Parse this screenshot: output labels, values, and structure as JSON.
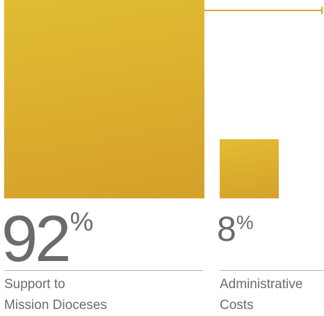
{
  "colors": {
    "accent": "#d9a92b",
    "bar_top": "#e0bd33",
    "bar_bottom": "#d6a02a",
    "text": "#6b6b6b",
    "rule": "#b3b3b3"
  },
  "chart_data": {
    "type": "bar",
    "title": "",
    "xlabel": "",
    "ylabel": "",
    "unit": "%",
    "categories": [
      "Support to Mission Dioceses",
      "Administrative Costs"
    ],
    "values": [
      92,
      8
    ],
    "ylim": [
      0,
      100
    ],
    "grid": false,
    "bars": [
      {
        "value": 92,
        "display": "92",
        "unit": "%",
        "label_line1": "Support to",
        "label_line2": "Mission Dioceses"
      },
      {
        "value": 8,
        "display": "8",
        "unit": "%",
        "label_line1": "Administrative",
        "label_line2": "Costs"
      }
    ]
  }
}
